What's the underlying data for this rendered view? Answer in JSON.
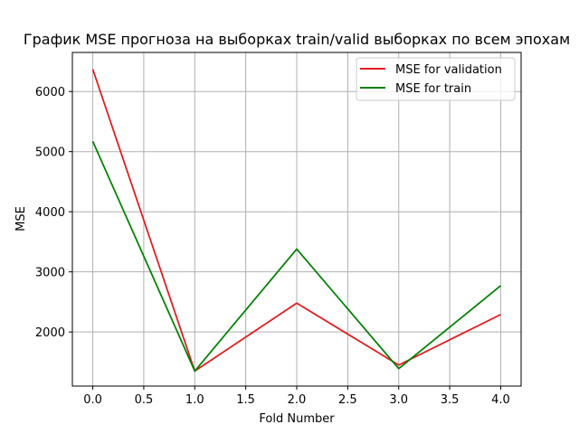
{
  "chart_data": {
    "type": "line",
    "title": "График MSE прогноза на выборках train/valid выборках по всем эпохам",
    "xlabel": "Fold Number",
    "ylabel": "MSE",
    "x": [
      0,
      1,
      2,
      3,
      4
    ],
    "xlim": [
      -0.2,
      4.2
    ],
    "ylim": [
      1100,
      6650
    ],
    "xticks": [
      0.0,
      0.5,
      1.0,
      1.5,
      2.0,
      2.5,
      3.0,
      3.5,
      4.0
    ],
    "xtick_labels": [
      "0.0",
      "0.5",
      "1.0",
      "1.5",
      "2.0",
      "2.5",
      "3.0",
      "3.5",
      "4.0"
    ],
    "yticks": [
      2000,
      3000,
      4000,
      5000,
      6000
    ],
    "ytick_labels": [
      "2000",
      "3000",
      "4000",
      "5000",
      "6000"
    ],
    "grid": true,
    "legend_position": "upper right",
    "series": [
      {
        "name": "MSE for validation",
        "color": "#e41a1c",
        "values": [
          6370,
          1350,
          2480,
          1450,
          2290
        ]
      },
      {
        "name": "MSE for train",
        "color": "#008000",
        "values": [
          5170,
          1350,
          3380,
          1390,
          2770
        ]
      }
    ]
  }
}
